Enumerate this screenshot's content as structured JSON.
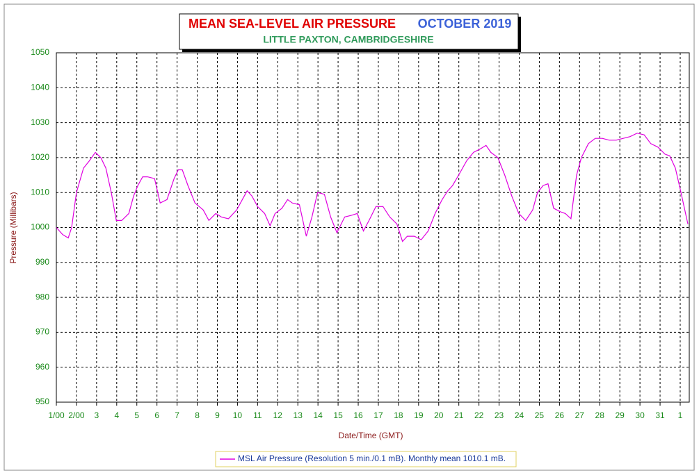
{
  "chart_data": {
    "type": "line",
    "title": "MEAN SEA-LEVEL AIR PRESSURE",
    "title_period": "OCTOBER 2019",
    "subtitle": "LITTLE PAXTON, CAMBRIDGESHIRE",
    "x_label": "Date/Time (GMT)",
    "y_label": "Pressure (Millibars)",
    "xlim": [
      1,
      32.45
    ],
    "ylim": [
      950,
      1050
    ],
    "xticks": [
      {
        "value": 1,
        "label": "1/00"
      },
      {
        "value": 2,
        "label": "2/00"
      },
      3,
      4,
      5,
      6,
      7,
      8,
      9,
      10,
      11,
      12,
      13,
      14,
      15,
      16,
      17,
      18,
      19,
      20,
      21,
      22,
      23,
      24,
      25,
      26,
      27,
      28,
      29,
      30,
      31,
      {
        "value": 32,
        "label": "1"
      }
    ],
    "yticks": [
      950,
      960,
      970,
      980,
      990,
      1000,
      1010,
      1020,
      1030,
      1040,
      1050
    ],
    "grid": true,
    "legend": "bottom",
    "series": [
      {
        "name": "MSL Air Pressure (Resolution 5 min./0.1 mB). Monthly mean 1010.1 mB.",
        "color": "#e000e0",
        "x": [
          1.0,
          1.31,
          1.59,
          1.76,
          2.0,
          2.35,
          2.63,
          2.94,
          3.21,
          3.46,
          3.73,
          3.98,
          4.25,
          4.6,
          4.84,
          5.05,
          5.29,
          5.53,
          5.88,
          6.16,
          6.5,
          6.85,
          7.06,
          7.26,
          7.54,
          7.89,
          8.3,
          8.58,
          8.92,
          9.2,
          9.55,
          9.96,
          10.48,
          10.72,
          11.0,
          11.35,
          11.62,
          11.87,
          12.21,
          12.49,
          12.73,
          13.08,
          13.42,
          13.7,
          13.98,
          14.32,
          14.63,
          14.94,
          15.33,
          15.67,
          15.95,
          16.26,
          16.54,
          16.88,
          17.23,
          17.57,
          17.92,
          18.2,
          18.44,
          18.79,
          19.13,
          19.48,
          19.82,
          20.17,
          20.45,
          20.69,
          21.04,
          21.38,
          21.73,
          22.07,
          22.35,
          22.59,
          22.94,
          23.28,
          23.63,
          23.98,
          24.32,
          24.67,
          24.91,
          25.19,
          25.43,
          25.71,
          26.05,
          26.29,
          26.57,
          26.85,
          27.09,
          27.44,
          27.78,
          28.13,
          28.47,
          28.82,
          29.17,
          29.51,
          29.86,
          30.21,
          30.54,
          30.89,
          31.24,
          31.48,
          31.76,
          32.04,
          32.38
        ],
        "values": [
          1000,
          998,
          997,
          1000,
          1010,
          1017,
          1019,
          1021.5,
          1020,
          1017,
          1010,
          1002,
          1002,
          1004,
          1009,
          1012,
          1014.5,
          1014.5,
          1014,
          1007,
          1008,
          1014,
          1016.5,
          1016.5,
          1012,
          1007,
          1005,
          1002,
          1004,
          1003,
          1002.5,
          1005,
          1010.5,
          1009,
          1006,
          1004,
          1000.5,
          1004,
          1005.5,
          1008,
          1007,
          1006.5,
          997.5,
          1003,
          1010,
          1009.5,
          1003,
          998.5,
          1003,
          1003.5,
          1004,
          999,
          1002,
          1006,
          1006,
          1003,
          1001,
          996,
          997.5,
          997.5,
          996.5,
          999,
          1004,
          1008,
          1010.5,
          1012,
          1015.5,
          1019,
          1021.5,
          1022.5,
          1023.5,
          1021.5,
          1020,
          1015,
          1009,
          1004,
          1002,
          1005,
          1010,
          1012,
          1012.5,
          1005.5,
          1004.5,
          1004,
          1002.5,
          1015,
          1020,
          1024,
          1025.5,
          1025.5,
          1025,
          1025,
          1025.5,
          1026,
          1027,
          1026.5,
          1024,
          1023,
          1021,
          1020.5,
          1017,
          1010,
          1001
        ]
      }
    ]
  }
}
